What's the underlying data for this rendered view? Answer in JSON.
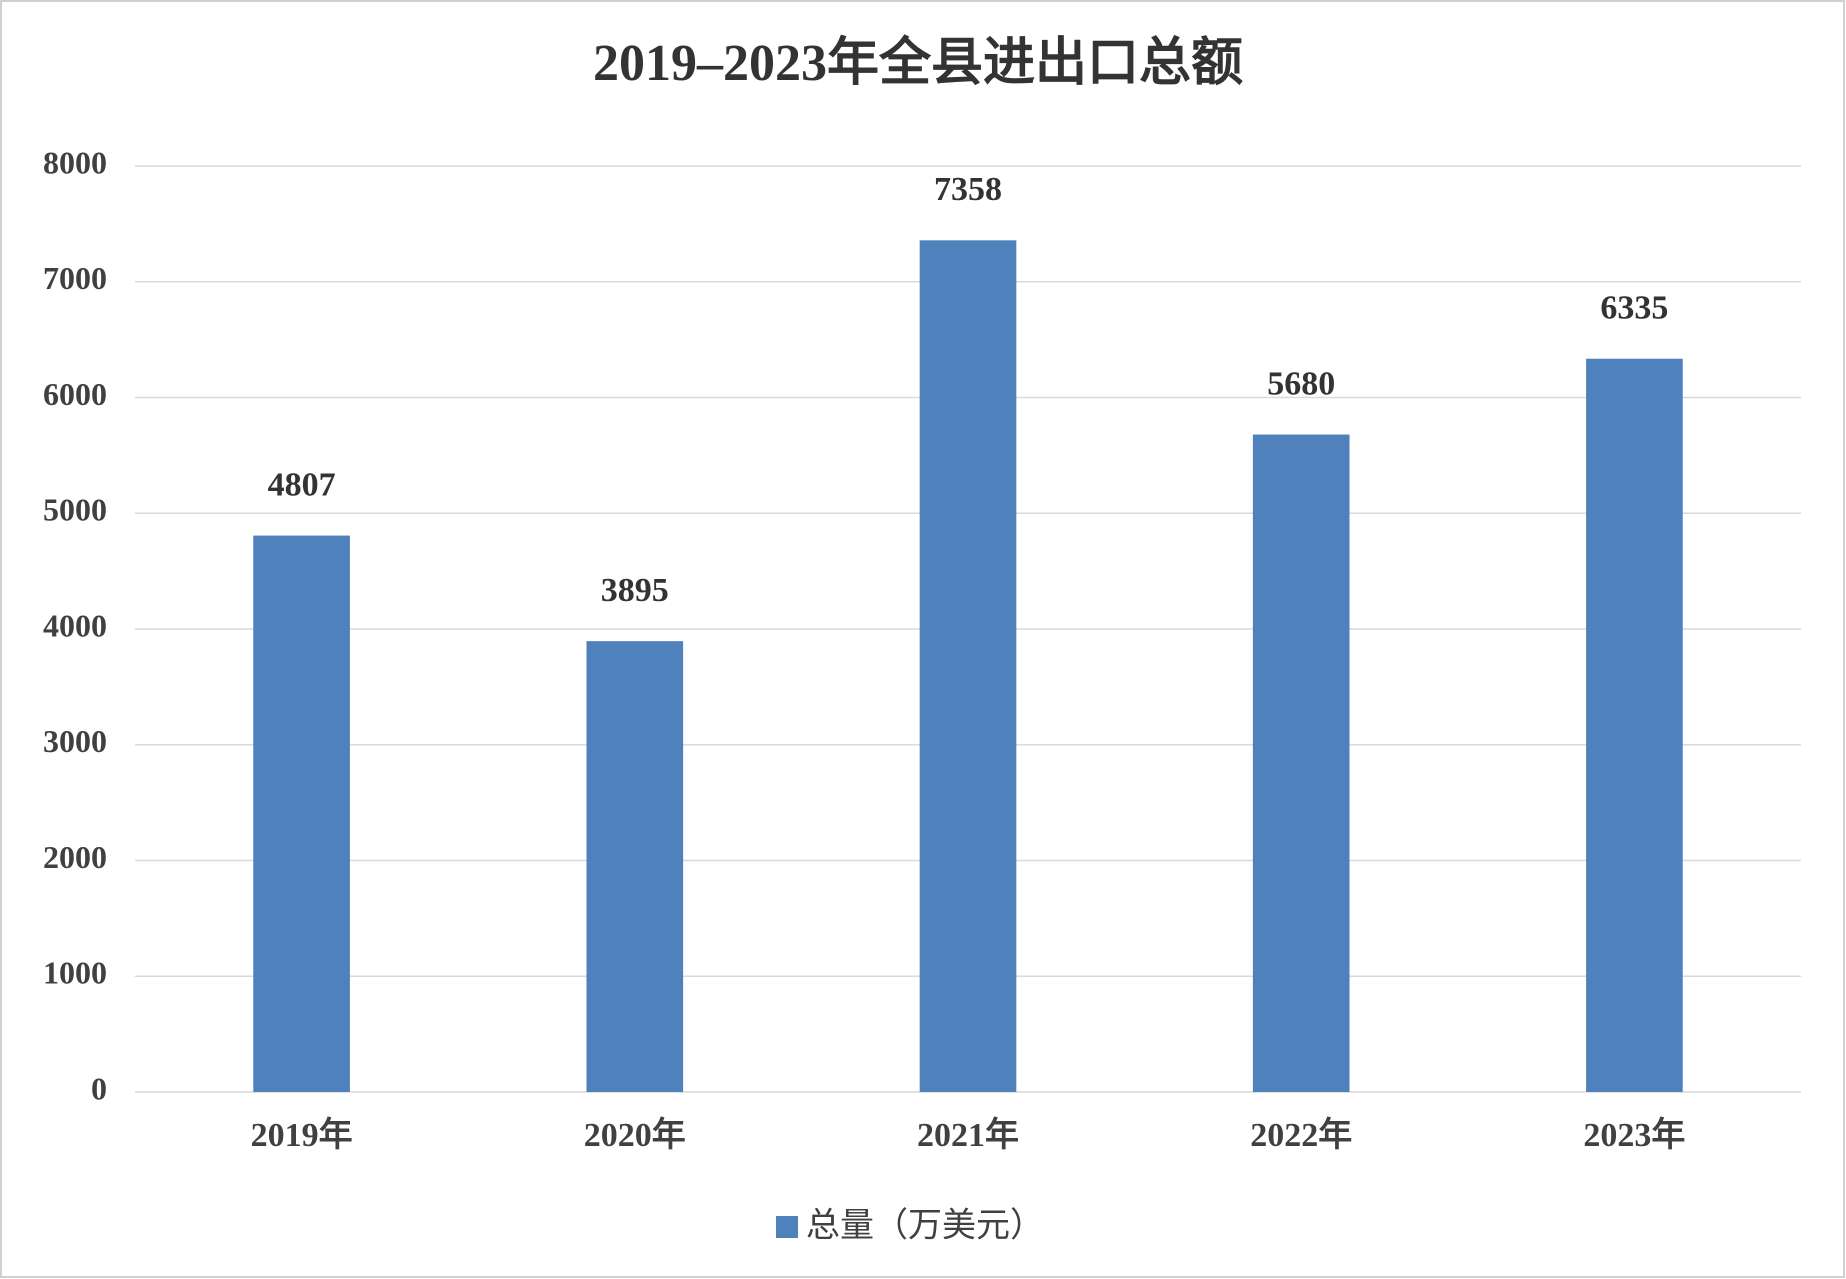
{
  "chart_data": {
    "type": "bar",
    "title": "2019–2023年全县进出口总额",
    "categories": [
      "2019年",
      "2020年",
      "2021年",
      "2022年",
      "2023年"
    ],
    "series": [
      {
        "name": "总量（万美元）",
        "color": "#4f81bd",
        "values": [
          4807,
          3895,
          7358,
          5680,
          6335
        ]
      }
    ],
    "ylim": [
      0,
      8000
    ],
    "yticks": [
      0,
      1000,
      2000,
      3000,
      4000,
      5000,
      6000,
      7000,
      8000
    ],
    "grid": true,
    "legend": "bottom",
    "data_labels": true
  }
}
